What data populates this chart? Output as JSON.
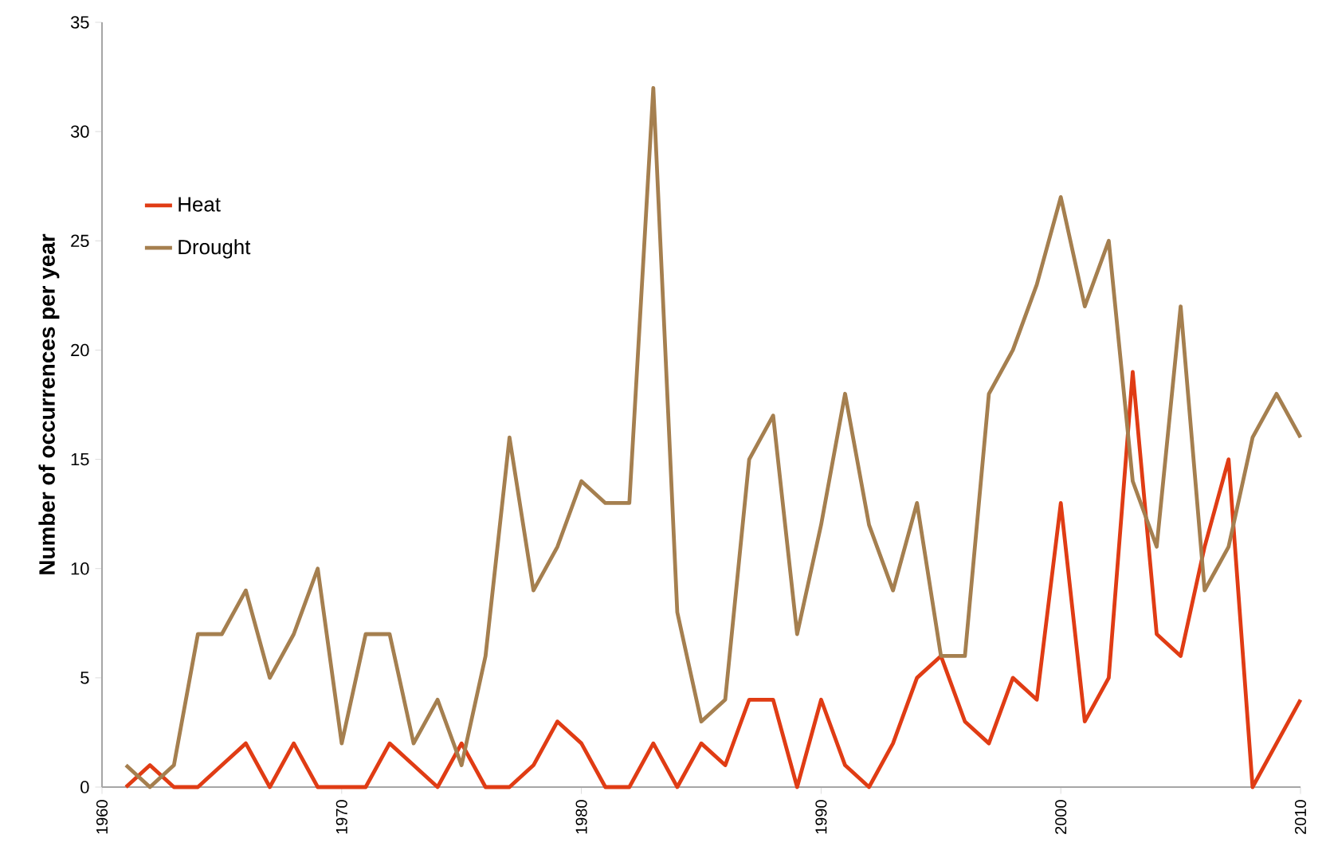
{
  "chart_data": {
    "type": "line",
    "ylabel": "Number of occurrences per year",
    "x": [
      1961,
      1962,
      1963,
      1964,
      1965,
      1966,
      1967,
      1968,
      1969,
      1970,
      1971,
      1972,
      1973,
      1974,
      1975,
      1976,
      1977,
      1978,
      1979,
      1980,
      1981,
      1982,
      1983,
      1984,
      1985,
      1986,
      1987,
      1988,
      1989,
      1990,
      1991,
      1992,
      1993,
      1994,
      1995,
      1996,
      1997,
      1998,
      1999,
      2000,
      2001,
      2002,
      2003,
      2004,
      2005,
      2006,
      2007,
      2008,
      2009,
      2010
    ],
    "series": [
      {
        "name": "Heat",
        "color": "#e03c14",
        "values": [
          0,
          1,
          0,
          0,
          1,
          2,
          0,
          2,
          0,
          0,
          0,
          2,
          1,
          0,
          2,
          0,
          0,
          1,
          3,
          2,
          0,
          0,
          2,
          0,
          2,
          1,
          4,
          4,
          0,
          4,
          1,
          0,
          2,
          5,
          6,
          3,
          2,
          5,
          4,
          13,
          3,
          5,
          19,
          7,
          6,
          11,
          15,
          0,
          2,
          4
        ]
      },
      {
        "name": "Drought",
        "color": "#a57f4f",
        "values": [
          1,
          0,
          1,
          7,
          7,
          9,
          5,
          7,
          10,
          2,
          7,
          7,
          2,
          4,
          1,
          6,
          16,
          9,
          11,
          14,
          13,
          13,
          32,
          8,
          3,
          4,
          15,
          17,
          7,
          12,
          18,
          12,
          9,
          13,
          6,
          6,
          18,
          20,
          23,
          27,
          22,
          25,
          14,
          11,
          22,
          9,
          11,
          16,
          18,
          16
        ]
      }
    ],
    "xlim": [
      1960,
      2010
    ],
    "xticks": [
      1960,
      1970,
      1980,
      1990,
      2000,
      2010
    ],
    "ylim": [
      0,
      35
    ],
    "yticks": [
      0,
      5,
      10,
      15,
      20,
      25,
      30,
      35
    ],
    "grid": false,
    "legend": "top left",
    "marker": "none",
    "line_style": "solid"
  }
}
